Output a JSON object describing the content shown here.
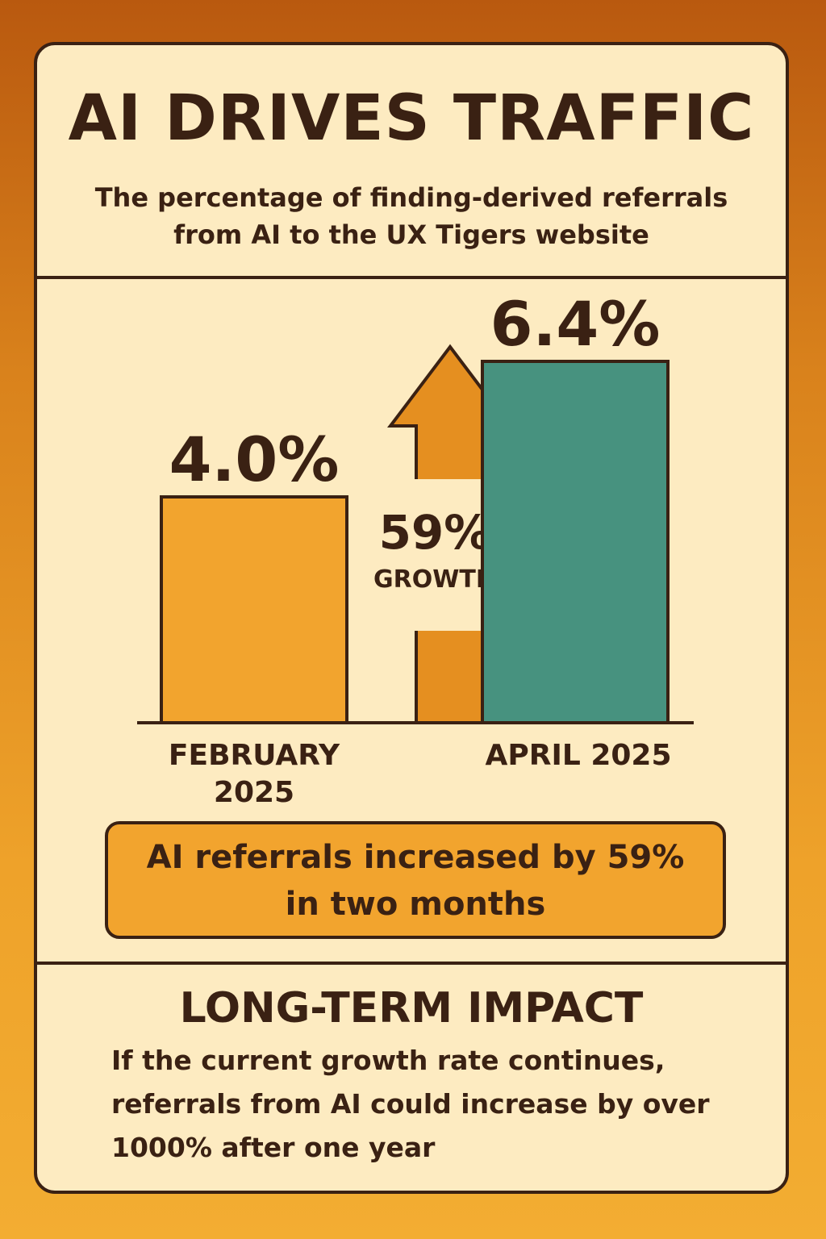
{
  "title": "AI DRIVES TRAFFIC",
  "subtitle": "The percentage of finding-derived referrals from AI to the UX Tigers website",
  "chart_data": {
    "type": "bar",
    "categories": [
      "FEBRUARY 2025",
      "APRIL 2025"
    ],
    "values": [
      4.0,
      6.4
    ],
    "value_labels": [
      "4.0%",
      "6.4%"
    ],
    "unit": "%",
    "ylim": [
      0,
      7
    ],
    "grid": false,
    "colors": [
      "#f2a42e",
      "#47927f"
    ],
    "annotation": {
      "value": "59%",
      "label": "GROWTH",
      "color": "#e58f20"
    }
  },
  "callout": "AI referrals increased by 59% in two months",
  "impact": {
    "title": "LONG-TERM IMPACT",
    "body": "If the current growth rate continues, referrals from AI could increase by over 1000% after one year"
  }
}
